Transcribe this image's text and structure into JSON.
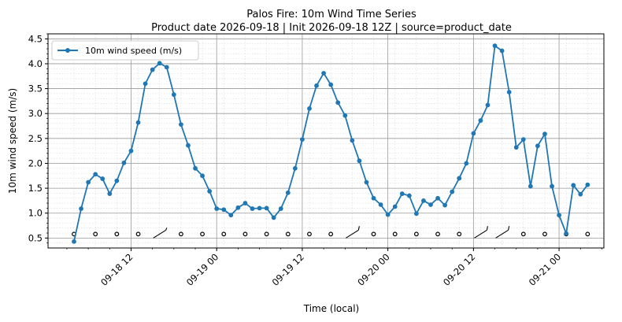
{
  "chart_data": {
    "type": "line",
    "title": "Palos Fire: 10m Wind Time Series",
    "subtitle": "Product date 2026-09-18 | Init 2026-09-18 12Z | source=product_date",
    "xlabel": "Time (local)",
    "ylabel": "10m wind speed (m/s)",
    "x_ticks": [
      "09-18 12",
      "09-19 00",
      "09-19 12",
      "09-20 00",
      "09-20 12",
      "09-21 00"
    ],
    "y_ticks": [
      "0.5",
      "1.0",
      "1.5",
      "2.0",
      "2.5",
      "3.0",
      "3.5",
      "4.0",
      "4.5"
    ],
    "ylim": [
      0.3,
      4.6
    ],
    "grid": true,
    "legend_position": "top-left",
    "colors": {
      "series": "#1f77b4",
      "barb": "#000000"
    },
    "x_start": "2026-09-18 04:00",
    "x_step_hours": 1,
    "series": [
      {
        "name": "10m wind speed (m/s)",
        "values": [
          0.43,
          1.09,
          1.62,
          1.78,
          1.69,
          1.39,
          1.65,
          2.01,
          2.25,
          2.82,
          3.6,
          3.88,
          4.01,
          3.93,
          3.38,
          2.78,
          2.36,
          1.9,
          1.75,
          1.44,
          1.09,
          1.07,
          0.96,
          1.11,
          1.2,
          1.09,
          1.1,
          1.1,
          0.91,
          1.09,
          1.41,
          1.9,
          2.48,
          3.1,
          3.56,
          3.81,
          3.58,
          3.22,
          2.96,
          2.46,
          2.05,
          1.62,
          1.3,
          1.17,
          0.97,
          1.13,
          1.39,
          1.35,
          0.99,
          1.25,
          1.17,
          1.3,
          1.16,
          1.43,
          1.7,
          2.0,
          2.6,
          2.86,
          3.17,
          4.36,
          4.26,
          3.43,
          2.32,
          2.48,
          1.54,
          2.35,
          2.59,
          1.54,
          0.96,
          0.59,
          1.56,
          1.38,
          1.57
        ]
      }
    ],
    "barbs": {
      "y": 0.58,
      "hours_offset": [
        0,
        3,
        6,
        9,
        12,
        15,
        18,
        21,
        24,
        27,
        30,
        33,
        36,
        39,
        42,
        45,
        48,
        51,
        54,
        57,
        60,
        63,
        66,
        69,
        72
      ],
      "kind": [
        "calm",
        "calm",
        "calm",
        "calm",
        "half",
        "calm",
        "calm",
        "calm",
        "calm",
        "calm",
        "calm",
        "calm",
        "calm",
        "full",
        "calm",
        "calm",
        "calm",
        "calm",
        "calm",
        "full",
        "full",
        "calm",
        "calm",
        "calm",
        "calm"
      ]
    }
  }
}
